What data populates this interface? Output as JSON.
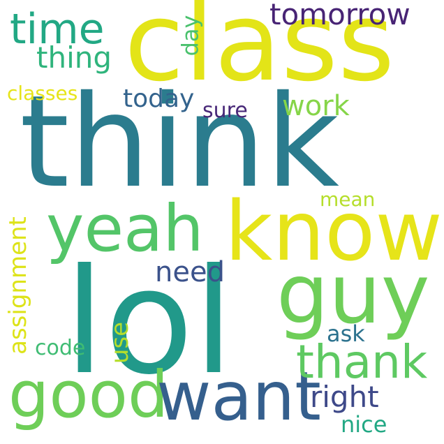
{
  "words": {
    "think": {
      "text": "think",
      "color": "#2b7c8e"
    },
    "class": {
      "text": "class",
      "color": "#e3e418"
    },
    "lol": {
      "text": "lol",
      "color": "#21998a"
    },
    "know": {
      "text": "know",
      "color": "#e6e419"
    },
    "guy": {
      "text": "guy",
      "color": "#6ece58"
    },
    "yeah": {
      "text": "yeah",
      "color": "#53c568"
    },
    "good": {
      "text": "good",
      "color": "#6ece58"
    },
    "want": {
      "text": "want",
      "color": "#355f8d"
    },
    "thank": {
      "text": "thank",
      "color": "#5ec962"
    },
    "time": {
      "text": "time",
      "color": "#22a884"
    },
    "tomorrow": {
      "text": "tomorrow",
      "color": "#482475"
    },
    "thing": {
      "text": "thing",
      "color": "#2fb47c"
    },
    "classes": {
      "text": "classes",
      "color": "#e6e419"
    },
    "today": {
      "text": "today",
      "color": "#33638d"
    },
    "work": {
      "text": "work",
      "color": "#86d549"
    },
    "sure": {
      "text": "sure",
      "color": "#482878"
    },
    "mean": {
      "text": "mean",
      "color": "#b5de2b"
    },
    "need": {
      "text": "need",
      "color": "#3b528b"
    },
    "ask": {
      "text": "ask",
      "color": "#2c728e"
    },
    "code": {
      "text": "code",
      "color": "#3fbc73"
    },
    "right": {
      "text": "right",
      "color": "#3e4989"
    },
    "nice": {
      "text": "nice",
      "color": "#22a884"
    },
    "day": {
      "text": "day",
      "color": "#4ac16d"
    },
    "assignment": {
      "text": "assignment",
      "color": "#dde318"
    },
    "use": {
      "text": "use",
      "color": "#b5de2b"
    }
  }
}
